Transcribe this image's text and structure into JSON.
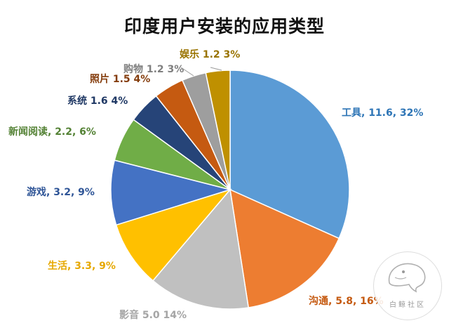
{
  "chart_data": {
    "type": "pie",
    "title": "印度用户安装的应用类型",
    "slices": [
      {
        "category": "工具",
        "value": 11.6,
        "percent": 32,
        "label": "工具, 11.6, 32%",
        "color": "#5B9BD5",
        "label_color": "#2E75B6"
      },
      {
        "category": "沟通",
        "value": 5.8,
        "percent": 16,
        "label": "沟通, 5.8, 16%",
        "color": "#ED7D31",
        "label_color": "#C55A11"
      },
      {
        "category": "影音",
        "value": 5.0,
        "percent": 14,
        "label": "影音 5.0 14%",
        "color": "#C0C0C0",
        "label_color": "#A5A5A5"
      },
      {
        "category": "生活",
        "value": 3.3,
        "percent": 9,
        "label": "生活, 3.3, 9%",
        "color": "#FFC000",
        "label_color": "#E6A800"
      },
      {
        "category": "游戏",
        "value": 3.2,
        "percent": 9,
        "label": "游戏, 3.2, 9%",
        "color": "#4472C4",
        "label_color": "#2F5597"
      },
      {
        "category": "新闻阅读",
        "value": 2.2,
        "percent": 6,
        "label": "新闻阅读, 2.2, 6%",
        "color": "#70AD47",
        "label_color": "#548235"
      },
      {
        "category": "系统",
        "value": 1.6,
        "percent": 4,
        "label": "系统 1.6 4%",
        "color": "#264478",
        "label_color": "#1F3864"
      },
      {
        "category": "照片",
        "value": 1.5,
        "percent": 4,
        "label": "照片 1.5 4%",
        "color": "#C55A11",
        "label_color": "#843C0C"
      },
      {
        "category": "购物",
        "value": 1.2,
        "percent": 3,
        "label": "购物 1.2 3%",
        "color": "#9E9E9E",
        "label_color": "#7F7F7F"
      },
      {
        "category": "娱乐",
        "value": 1.2,
        "percent": 3,
        "label": "娱乐 1.2 3%",
        "color": "#BF9000",
        "label_color": "#997300"
      }
    ]
  },
  "watermark": {
    "text": "白鲸社区"
  }
}
